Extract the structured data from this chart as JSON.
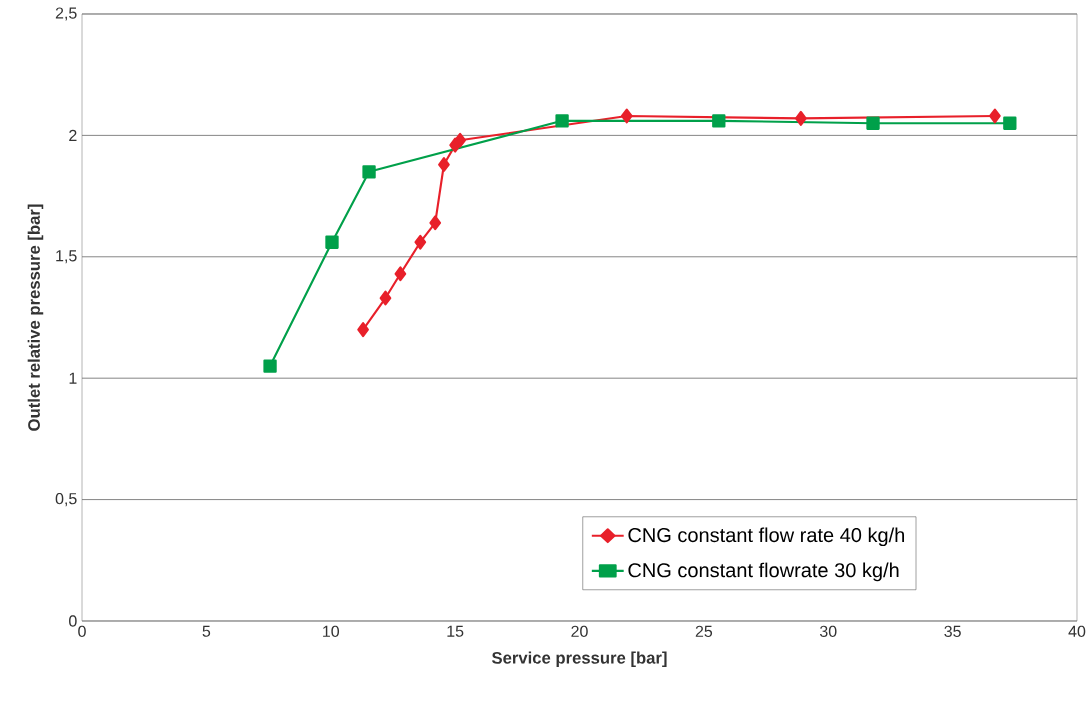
{
  "chart_data": {
    "type": "line",
    "xlabel": "Service pressure [bar]",
    "ylabel": "Outlet relative pressure [bar]",
    "series": [
      {
        "name": "CNG constant flow rate 40 kg/h",
        "color": "#e8202a",
        "marker": "diamond",
        "x": [
          11.3,
          12.2,
          12.8,
          13.6,
          14.2,
          14.55,
          15.0,
          15.2,
          21.9,
          28.9,
          36.7
        ],
        "values": [
          1.2,
          1.33,
          1.43,
          1.56,
          1.64,
          1.88,
          1.96,
          1.98,
          2.08,
          2.07,
          2.08
        ]
      },
      {
        "name": "CNG constant flowrate 30 kg/h",
        "color": "#00a04a",
        "marker": "square",
        "x": [
          7.56,
          10.05,
          11.54,
          19.3,
          25.6,
          31.8,
          37.3
        ],
        "values": [
          1.05,
          1.56,
          1.85,
          2.06,
          2.06,
          2.05,
          2.05
        ]
      }
    ],
    "xlim": [
      0,
      40
    ],
    "ylim": [
      0,
      2.5
    ],
    "xticks": [
      0,
      5,
      10,
      15,
      20,
      25,
      30,
      35,
      40
    ],
    "yticks": [
      0,
      {
        "value": 0.5,
        "label": "0,5"
      },
      1,
      {
        "value": 1.5,
        "label": "1,5"
      },
      2,
      {
        "value": 2.5,
        "label": "2,5"
      }
    ],
    "grid": "y",
    "legend": "bottom right",
    "line_style": "solid"
  }
}
